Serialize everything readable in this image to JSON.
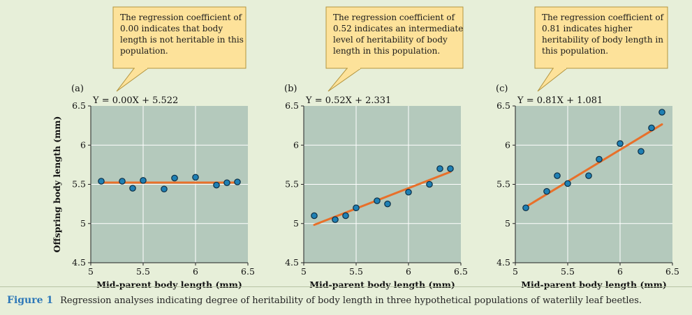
{
  "colors": {
    "background": "#e7efd9",
    "plot_area": "#b4c9bc",
    "gridline": "#ffffff",
    "regression_line": "#e8702a",
    "point_fill": "#1f80b4",
    "point_stroke": "#0c2d44",
    "callout_fill": "#fde29a",
    "callout_stroke": "#b3953f",
    "figure_label": "#2e78b8"
  },
  "chart_data": [
    {
      "type": "scatter",
      "panel_label": "(a)",
      "equation": "Y = 0.00X + 5.522",
      "annotation": [
        "The regression coefficient of",
        "0.00 indicates that body",
        "length is not heritable in this",
        "population."
      ],
      "xlabel": "Mid-parent body length (mm)",
      "ylabel": "Offspring body length (mm)",
      "xlim": [
        5,
        6.5
      ],
      "ylim": [
        4.5,
        6.5
      ],
      "xticks": [
        "5",
        "5.5",
        "6",
        "6.5"
      ],
      "yticks": [
        "4.5",
        "5",
        "5.5",
        "6",
        "6.5"
      ],
      "grid": true,
      "points": [
        [
          5.1,
          5.54
        ],
        [
          5.3,
          5.54
        ],
        [
          5.4,
          5.45
        ],
        [
          5.5,
          5.55
        ],
        [
          5.7,
          5.44
        ],
        [
          5.8,
          5.58
        ],
        [
          6.0,
          5.59
        ],
        [
          6.2,
          5.49
        ],
        [
          6.3,
          5.52
        ],
        [
          6.4,
          5.53
        ]
      ],
      "fit": {
        "slope": 0.0,
        "intercept": 5.522,
        "x_range": [
          5.1,
          6.4
        ]
      }
    },
    {
      "type": "scatter",
      "panel_label": "(b)",
      "equation": "Y = 0.52X + 2.331",
      "annotation": [
        "The regression coefficient of",
        "0.52 indicates an intermediate",
        "level of heritability of body",
        "length in this population."
      ],
      "xlabel": "Mid-parent body length (mm)",
      "ylabel": "",
      "xlim": [
        5,
        6.5
      ],
      "ylim": [
        4.5,
        6.5
      ],
      "xticks": [
        "5",
        "5.5",
        "6",
        "6.5"
      ],
      "yticks": [
        "4.5",
        "5",
        "5.5",
        "6",
        "6.5"
      ],
      "grid": true,
      "points": [
        [
          5.1,
          5.1
        ],
        [
          5.3,
          5.05
        ],
        [
          5.4,
          5.1
        ],
        [
          5.5,
          5.2
        ],
        [
          5.7,
          5.29
        ],
        [
          5.8,
          5.25
        ],
        [
          6.0,
          5.4
        ],
        [
          6.2,
          5.5
        ],
        [
          6.3,
          5.7
        ],
        [
          6.4,
          5.7
        ]
      ],
      "fit": {
        "slope": 0.52,
        "intercept": 2.331,
        "x_range": [
          5.1,
          6.4
        ]
      }
    },
    {
      "type": "scatter",
      "panel_label": "(c)",
      "equation": "Y = 0.81X + 1.081",
      "annotation": [
        "The regression coefficient of",
        "0.81 indicates higher",
        "heritability of body length in",
        "this population."
      ],
      "xlabel": "Mid-parent body length (mm)",
      "ylabel": "",
      "xlim": [
        5,
        6.5
      ],
      "ylim": [
        4.5,
        6.5
      ],
      "xticks": [
        "5",
        "5.5",
        "6",
        "6.5"
      ],
      "yticks": [
        "4.5",
        "5",
        "5.5",
        "6",
        "6.5"
      ],
      "grid": true,
      "points": [
        [
          5.1,
          5.2
        ],
        [
          5.3,
          5.41
        ],
        [
          5.4,
          5.61
        ],
        [
          5.5,
          5.51
        ],
        [
          5.7,
          5.61
        ],
        [
          5.8,
          5.82
        ],
        [
          6.0,
          6.02
        ],
        [
          6.2,
          5.92
        ],
        [
          6.3,
          6.22
        ],
        [
          6.4,
          6.42
        ]
      ],
      "fit": {
        "slope": 0.81,
        "intercept": 1.081,
        "x_range": [
          5.1,
          6.4
        ]
      }
    }
  ],
  "caption": {
    "label": "Figure 1",
    "text": "Regression analyses indicating degree of heritability of body length in three hypothetical populations of waterlily leaf beetles."
  }
}
